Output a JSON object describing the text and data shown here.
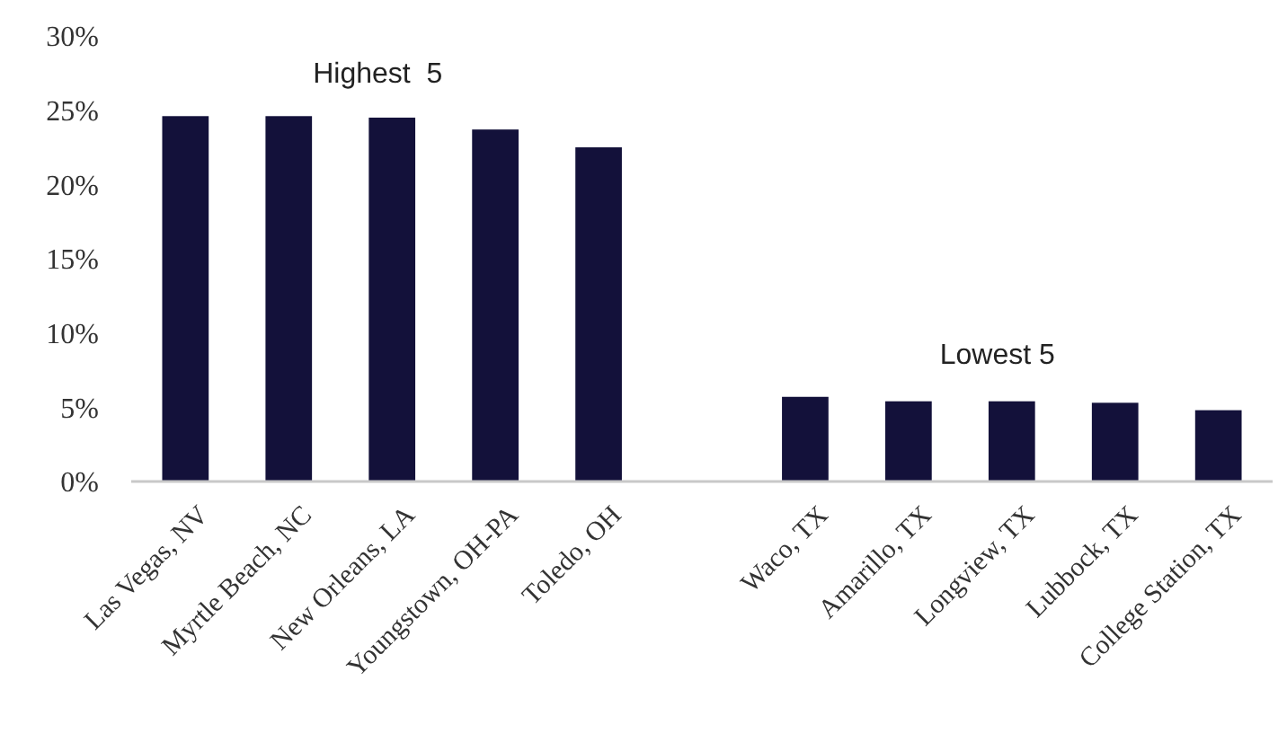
{
  "chart_data": {
    "type": "bar",
    "categories": [
      "Las Vegas, NV",
      "Myrtle Beach, NC",
      "New Orleans, LA",
      "Youngstown, OH-PA",
      "Toledo, OH",
      null,
      "Waco, TX",
      "Amarillo, TX",
      "Longview, TX",
      "Lubbock, TX",
      "College Station, TX"
    ],
    "values": [
      24.6,
      24.6,
      24.5,
      23.7,
      22.5,
      null,
      5.7,
      5.4,
      5.4,
      5.3,
      4.8
    ],
    "color": "#13113a",
    "ylim": [
      0,
      30
    ],
    "yticks": [
      {
        "value": 0,
        "label": "0%"
      },
      {
        "value": 5,
        "label": "5%"
      },
      {
        "value": 10,
        "label": "10%"
      },
      {
        "value": 15,
        "label": "15%"
      },
      {
        "value": 20,
        "label": "20%"
      },
      {
        "value": 25,
        "label": "25%"
      },
      {
        "value": 30,
        "label": "30%"
      }
    ],
    "annotations": [
      "Highest  5",
      "Lowest 5"
    ],
    "grid": false
  }
}
